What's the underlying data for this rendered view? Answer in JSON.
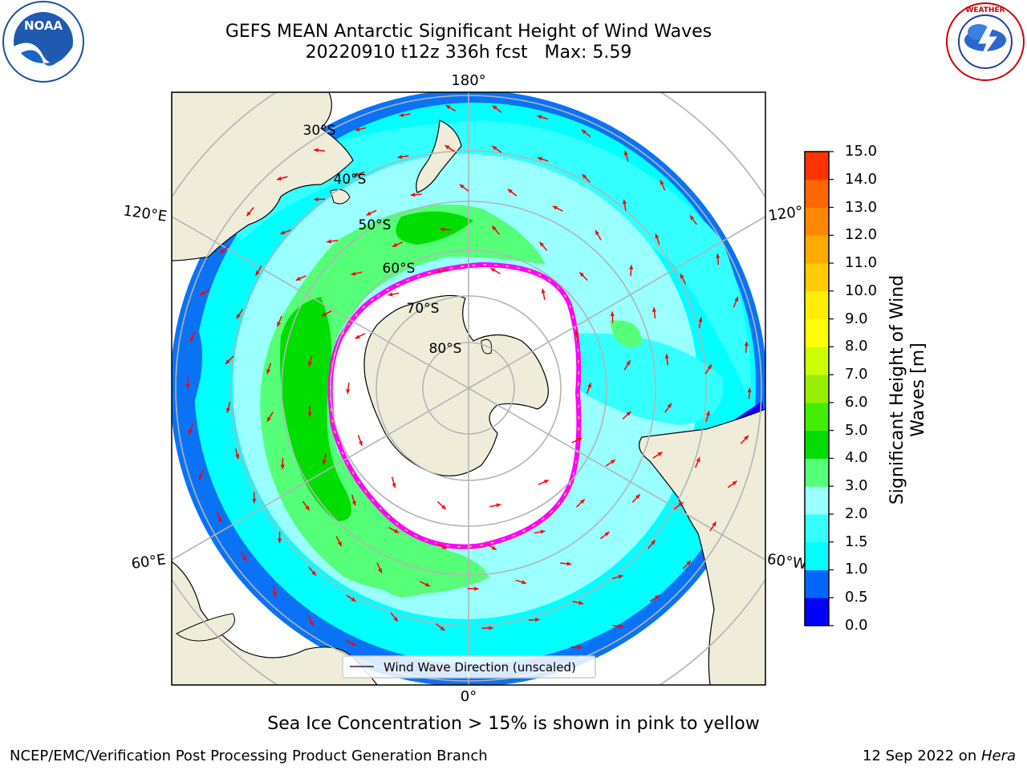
{
  "header": {
    "title_line1": "GEFS MEAN Antarctic Significant Height of Wind Waves",
    "title_line2": "20220910 t12z 336h fcst   Max: 5.59"
  },
  "logos": {
    "left": "noaa-logo",
    "right": "national-weather-service-logo"
  },
  "map": {
    "projection": "south-polar-stereographic",
    "longitude_labels": {
      "top": "180°",
      "bottom": "0°",
      "left_upper": "120°E",
      "left_lower": "60°E",
      "right_upper": "120°",
      "right_lower": "60°W"
    },
    "latitude_labels": [
      "30°S",
      "40°S",
      "50°S",
      "60°S",
      "70°S",
      "80°S"
    ],
    "legend": "Wind Wave Direction (unscaled)",
    "arrow_color": "#ff0000",
    "land_color": "#efedda",
    "ice_edge_colors": [
      "#ff00ff",
      "#ffcc33"
    ]
  },
  "colorbar": {
    "title_line1": "Significant Height of Wind",
    "title_line2": "Waves [m]",
    "ticks": [
      "0.0",
      "0.5",
      "1.0",
      "1.5",
      "2.0",
      "3.0",
      "4.0",
      "5.0",
      "6.0",
      "7.0",
      "8.0",
      "9.0",
      "10.0",
      "11.0",
      "12.0",
      "13.0",
      "14.0",
      "15.0"
    ],
    "colors": [
      "#0000ff",
      "#0066ff",
      "#00ffff",
      "#33ffff",
      "#99ffff",
      "#55ff77",
      "#00dd00",
      "#44ee00",
      "#99ee00",
      "#ccff00",
      "#ffff00",
      "#ffee00",
      "#ffcc00",
      "#ffaa00",
      "#ff8800",
      "#ff6600",
      "#ff3300"
    ]
  },
  "notes": {
    "ice": "Sea Ice Concentration > 15% is shown in pink to yellow"
  },
  "footer": {
    "left": "NCEP/EMC/Verification Post Processing Product Generation Branch",
    "right_prefix": "12 Sep 2022 on ",
    "right_machine": "Hera"
  }
}
